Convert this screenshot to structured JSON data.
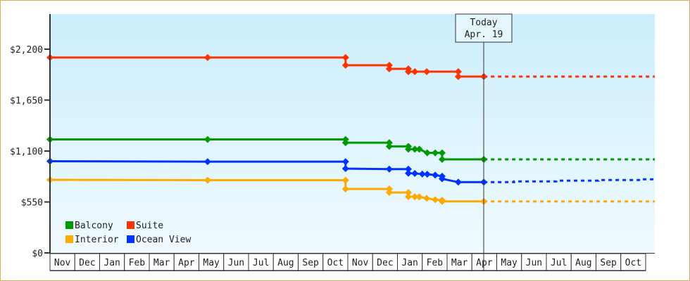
{
  "chart_data": {
    "type": "line",
    "title": "",
    "xlabel": "",
    "ylabel": "",
    "ylim": [
      0,
      2200
    ],
    "y_ticks": [
      "$0",
      "$550",
      "$1,100",
      "$1,650",
      "$2,200"
    ],
    "y_tick_values": [
      0,
      550,
      1100,
      1650,
      2200
    ],
    "x_unit": "months since start of first Nov",
    "x_categories": [
      "Nov",
      "Dec",
      "Jan",
      "Feb",
      "Mar",
      "Apr",
      "May",
      "Jun",
      "Jul",
      "Aug",
      "Sep",
      "Oct",
      "Nov",
      "Dec",
      "Jan",
      "Feb",
      "Mar",
      "Apr",
      "May",
      "Jun",
      "Jul",
      "Aug",
      "Sep",
      "Oct"
    ],
    "today": {
      "label": "Today",
      "date": "Apr. 19",
      "x": 17.48
    },
    "legend": {
      "placement": "bottom-left"
    },
    "series": [
      {
        "name": "Balcony",
        "color": "#009900",
        "points": [
          [
            0,
            1225
          ],
          [
            6.35,
            1225
          ],
          [
            11.91,
            1225
          ],
          [
            11.91,
            1190
          ],
          [
            13.67,
            1190
          ],
          [
            13.67,
            1150
          ],
          [
            14.44,
            1150
          ],
          [
            14.44,
            1120
          ],
          [
            14.7,
            1120
          ],
          [
            14.88,
            1120
          ],
          [
            15.2,
            1080
          ],
          [
            15.52,
            1080
          ],
          [
            15.8,
            1080
          ],
          [
            15.8,
            1010
          ],
          [
            17.48,
            1010
          ]
        ],
        "forecast": [
          [
            17.48,
            1010
          ],
          [
            24.37,
            1010
          ]
        ]
      },
      {
        "name": "Suite",
        "color": "#ff3300",
        "points": [
          [
            0,
            2110
          ],
          [
            6.35,
            2110
          ],
          [
            11.91,
            2110
          ],
          [
            11.91,
            2026
          ],
          [
            13.67,
            2026
          ],
          [
            13.67,
            1988
          ],
          [
            14.44,
            1988
          ],
          [
            14.44,
            1957
          ],
          [
            14.7,
            1957
          ],
          [
            15.18,
            1957
          ],
          [
            16.45,
            1957
          ],
          [
            16.45,
            1904
          ],
          [
            17.48,
            1904
          ]
        ],
        "forecast": [
          [
            17.48,
            1904
          ],
          [
            24.37,
            1904
          ]
        ]
      },
      {
        "name": "Interior",
        "color": "#ffaa00",
        "points": [
          [
            0,
            789
          ],
          [
            6.35,
            785
          ],
          [
            11.91,
            785
          ],
          [
            11.91,
            690
          ],
          [
            13.67,
            690
          ],
          [
            13.67,
            652
          ],
          [
            14.44,
            652
          ],
          [
            14.44,
            607
          ],
          [
            14.7,
            607
          ],
          [
            14.88,
            605
          ],
          [
            15.18,
            590
          ],
          [
            15.52,
            575
          ],
          [
            15.8,
            569
          ],
          [
            15.8,
            556
          ],
          [
            17.48,
            556
          ]
        ],
        "forecast": [
          [
            17.48,
            556
          ],
          [
            24.37,
            556
          ]
        ]
      },
      {
        "name": "Ocean View",
        "color": "#0033ff",
        "points": [
          [
            0,
            990
          ],
          [
            6.35,
            985
          ],
          [
            11.91,
            985
          ],
          [
            11.91,
            910
          ],
          [
            13.67,
            905
          ],
          [
            14.44,
            905
          ],
          [
            14.44,
            860
          ],
          [
            14.7,
            858
          ],
          [
            15.0,
            852
          ],
          [
            15.2,
            850
          ],
          [
            15.52,
            840
          ],
          [
            15.8,
            828
          ],
          [
            15.8,
            800
          ],
          [
            16.45,
            764
          ],
          [
            17.48,
            764
          ]
        ],
        "forecast": [
          [
            17.48,
            764
          ],
          [
            18.7,
            764
          ],
          [
            18.7,
            772
          ],
          [
            20.4,
            772
          ],
          [
            20.4,
            780
          ],
          [
            22.1,
            780
          ],
          [
            22.1,
            787
          ],
          [
            23.8,
            787
          ],
          [
            23.8,
            795
          ],
          [
            24.37,
            795
          ]
        ]
      }
    ]
  }
}
